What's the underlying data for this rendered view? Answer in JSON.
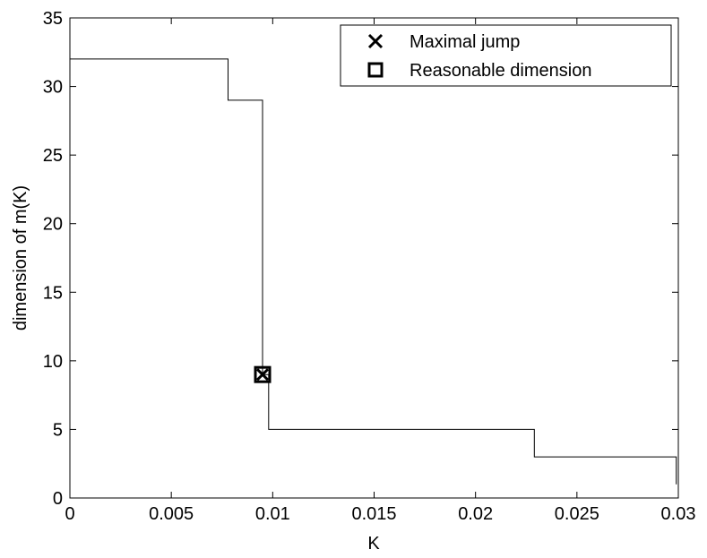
{
  "chart_data": {
    "type": "line",
    "xlabel": "K",
    "ylabel": "dimension of m(K)",
    "xlim": [
      0,
      0.03
    ],
    "ylim": [
      0,
      35
    ],
    "grid": false,
    "legend_position": "top-right",
    "x_ticks": [
      0,
      0.005,
      0.01,
      0.015,
      0.02,
      0.025,
      0.03
    ],
    "x_tick_labels": [
      "0",
      "0.005",
      "0.01",
      "0.015",
      "0.02",
      "0.025",
      "0.03"
    ],
    "y_ticks": [
      0,
      5,
      10,
      15,
      20,
      25,
      30,
      35
    ],
    "y_tick_labels": [
      "0",
      "5",
      "10",
      "15",
      "20",
      "25",
      "30",
      "35"
    ],
    "series": [
      {
        "style": "step",
        "color": "#000000",
        "points": [
          {
            "x": 0,
            "y": 32
          },
          {
            "x": 0.0078,
            "y": 32
          },
          {
            "x": 0.0078,
            "y": 29
          },
          {
            "x": 0.0095,
            "y": 29
          },
          {
            "x": 0.0095,
            "y": 9
          },
          {
            "x": 0.0098,
            "y": 9
          },
          {
            "x": 0.0098,
            "y": 5
          },
          {
            "x": 0.0229,
            "y": 5
          },
          {
            "x": 0.0229,
            "y": 3
          },
          {
            "x": 0.0299,
            "y": 3
          },
          {
            "x": 0.0299,
            "y": 1
          }
        ]
      }
    ],
    "markers": [
      {
        "name": "Maximal jump",
        "symbol": "x",
        "x": 0.0095,
        "y": 9
      },
      {
        "name": "Reasonable dimension",
        "symbol": "square",
        "x": 0.0095,
        "y": 9
      }
    ],
    "legend": [
      {
        "label": "Maximal jump",
        "symbol": "x"
      },
      {
        "label": "Reasonable dimension",
        "symbol": "square"
      }
    ]
  }
}
